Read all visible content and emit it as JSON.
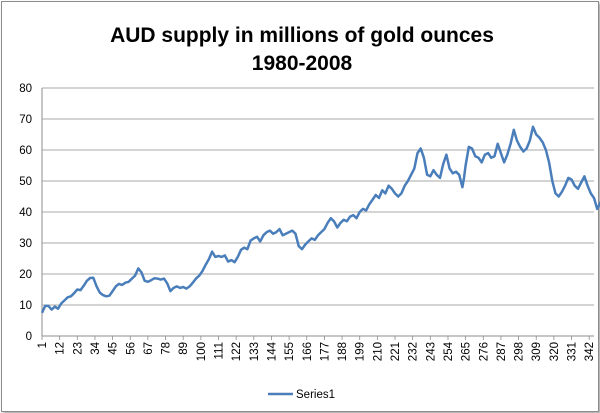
{
  "chart_data": {
    "type": "line",
    "title_lines": [
      "AUD  supply in millions of gold ounces",
      "1980-2008"
    ],
    "xlabel": "",
    "ylabel": "",
    "ylim": [
      0,
      80
    ],
    "y_ticks": [
      0,
      10,
      20,
      30,
      40,
      50,
      60,
      70,
      80
    ],
    "x_range": [
      1,
      343
    ],
    "x_ticks": [
      1,
      12,
      23,
      34,
      45,
      56,
      67,
      78,
      89,
      100,
      111,
      122,
      133,
      144,
      155,
      166,
      177,
      188,
      199,
      210,
      221,
      232,
      243,
      254,
      265,
      276,
      287,
      298,
      309,
      320,
      331,
      342
    ],
    "grid": "horizontal",
    "legend_position": "bottom",
    "series_color": "#4a7ebb",
    "series": [
      {
        "name": "Series1",
        "anchor_points": [
          [
            1,
            7.5
          ],
          [
            3,
            9.7
          ],
          [
            5,
            9.7
          ],
          [
            7,
            8.5
          ],
          [
            9,
            9.5
          ],
          [
            11,
            8.8
          ],
          [
            13,
            10.5
          ],
          [
            15,
            11.5
          ],
          [
            17,
            12.5
          ],
          [
            19,
            12.8
          ],
          [
            21,
            13.8
          ],
          [
            23,
            15.0
          ],
          [
            25,
            14.8
          ],
          [
            27,
            16.2
          ],
          [
            29,
            17.8
          ],
          [
            31,
            18.7
          ],
          [
            33,
            18.8
          ],
          [
            35,
            16.0
          ],
          [
            37,
            14.0
          ],
          [
            39,
            13.2
          ],
          [
            41,
            12.8
          ],
          [
            43,
            13.0
          ],
          [
            45,
            14.5
          ],
          [
            47,
            16.0
          ],
          [
            49,
            16.8
          ],
          [
            51,
            16.5
          ],
          [
            53,
            17.2
          ],
          [
            55,
            17.5
          ],
          [
            57,
            18.5
          ],
          [
            59,
            19.5
          ],
          [
            61,
            21.8
          ],
          [
            63,
            20.5
          ],
          [
            65,
            17.8
          ],
          [
            67,
            17.5
          ],
          [
            69,
            18.0
          ],
          [
            71,
            18.6
          ],
          [
            73,
            18.5
          ],
          [
            75,
            18.2
          ],
          [
            77,
            18.5
          ],
          [
            79,
            17.0
          ],
          [
            81,
            14.5
          ],
          [
            83,
            15.5
          ],
          [
            85,
            16.0
          ],
          [
            87,
            15.5
          ],
          [
            89,
            15.8
          ],
          [
            91,
            15.3
          ],
          [
            93,
            16.0
          ],
          [
            95,
            17.2
          ],
          [
            97,
            18.5
          ],
          [
            99,
            19.5
          ],
          [
            101,
            21.0
          ],
          [
            103,
            23.0
          ],
          [
            105,
            24.8
          ],
          [
            107,
            27.2
          ],
          [
            109,
            25.5
          ],
          [
            111,
            25.8
          ],
          [
            113,
            25.5
          ],
          [
            115,
            26.0
          ],
          [
            117,
            24.0
          ],
          [
            119,
            24.5
          ],
          [
            121,
            23.8
          ],
          [
            123,
            25.5
          ],
          [
            125,
            27.8
          ],
          [
            127,
            28.5
          ],
          [
            129,
            28.0
          ],
          [
            131,
            30.8
          ],
          [
            133,
            31.5
          ],
          [
            135,
            32.0
          ],
          [
            137,
            30.5
          ],
          [
            139,
            32.5
          ],
          [
            141,
            33.5
          ],
          [
            143,
            34.0
          ],
          [
            145,
            33.0
          ],
          [
            147,
            33.5
          ],
          [
            149,
            34.5
          ],
          [
            151,
            32.5
          ],
          [
            153,
            33.0
          ],
          [
            155,
            33.5
          ],
          [
            157,
            34.0
          ],
          [
            159,
            33.0
          ],
          [
            161,
            29.0
          ],
          [
            163,
            28.0
          ],
          [
            165,
            29.5
          ],
          [
            167,
            30.5
          ],
          [
            169,
            31.5
          ],
          [
            171,
            31.0
          ],
          [
            173,
            32.5
          ],
          [
            175,
            33.5
          ],
          [
            177,
            34.5
          ],
          [
            179,
            36.5
          ],
          [
            181,
            38.0
          ],
          [
            183,
            37.0
          ],
          [
            185,
            35.0
          ],
          [
            187,
            36.5
          ],
          [
            189,
            37.5
          ],
          [
            191,
            37.0
          ],
          [
            193,
            38.5
          ],
          [
            195,
            39.0
          ],
          [
            197,
            38.0
          ],
          [
            199,
            40.0
          ],
          [
            201,
            41.0
          ],
          [
            203,
            40.5
          ],
          [
            205,
            42.5
          ],
          [
            207,
            44.0
          ],
          [
            209,
            45.5
          ],
          [
            211,
            44.5
          ],
          [
            213,
            47.0
          ],
          [
            215,
            46.0
          ],
          [
            217,
            48.5
          ],
          [
            219,
            47.5
          ],
          [
            221,
            46.0
          ],
          [
            223,
            45.0
          ],
          [
            225,
            46.0
          ],
          [
            227,
            48.5
          ],
          [
            229,
            50.0
          ],
          [
            231,
            52.0
          ],
          [
            233,
            54.0
          ],
          [
            235,
            59.0
          ],
          [
            237,
            60.5
          ],
          [
            239,
            57.5
          ],
          [
            241,
            52.0
          ],
          [
            243,
            51.5
          ],
          [
            245,
            53.5
          ],
          [
            247,
            52.0
          ],
          [
            249,
            51.0
          ],
          [
            251,
            55.5
          ],
          [
            253,
            58.5
          ],
          [
            255,
            54.0
          ],
          [
            257,
            52.5
          ],
          [
            259,
            53.0
          ],
          [
            261,
            52.0
          ],
          [
            263,
            48.0
          ],
          [
            264,
            51.0
          ],
          [
            265,
            55.0
          ],
          [
            267,
            61.0
          ],
          [
            269,
            60.5
          ],
          [
            271,
            58.0
          ],
          [
            273,
            57.5
          ],
          [
            275,
            56.0
          ],
          [
            277,
            58.5
          ],
          [
            279,
            59.0
          ],
          [
            281,
            57.5
          ],
          [
            283,
            58.0
          ],
          [
            285,
            62.0
          ],
          [
            287,
            59.0
          ],
          [
            289,
            56.0
          ],
          [
            291,
            58.5
          ],
          [
            293,
            62.0
          ],
          [
            295,
            66.5
          ],
          [
            297,
            63.0
          ],
          [
            299,
            61.0
          ],
          [
            301,
            59.5
          ],
          [
            303,
            60.5
          ],
          [
            305,
            63.0
          ],
          [
            307,
            67.5
          ],
          [
            309,
            65.0
          ],
          [
            311,
            64.0
          ],
          [
            313,
            62.5
          ],
          [
            315,
            60.0
          ],
          [
            317,
            56.0
          ],
          [
            319,
            50.0
          ],
          [
            321,
            46.0
          ],
          [
            323,
            45.0
          ],
          [
            325,
            46.5
          ],
          [
            327,
            48.5
          ],
          [
            329,
            51.0
          ],
          [
            331,
            50.5
          ],
          [
            333,
            48.5
          ],
          [
            335,
            47.5
          ],
          [
            337,
            49.5
          ],
          [
            339,
            51.5
          ],
          [
            341,
            48.5
          ],
          [
            343,
            46.0
          ],
          [
            345,
            44.5
          ],
          [
            347,
            41.0
          ],
          [
            349,
            43.0
          ],
          [
            351,
            45.0
          ],
          [
            353,
            43.5
          ],
          [
            355,
            45.0
          ]
        ]
      }
    ]
  }
}
